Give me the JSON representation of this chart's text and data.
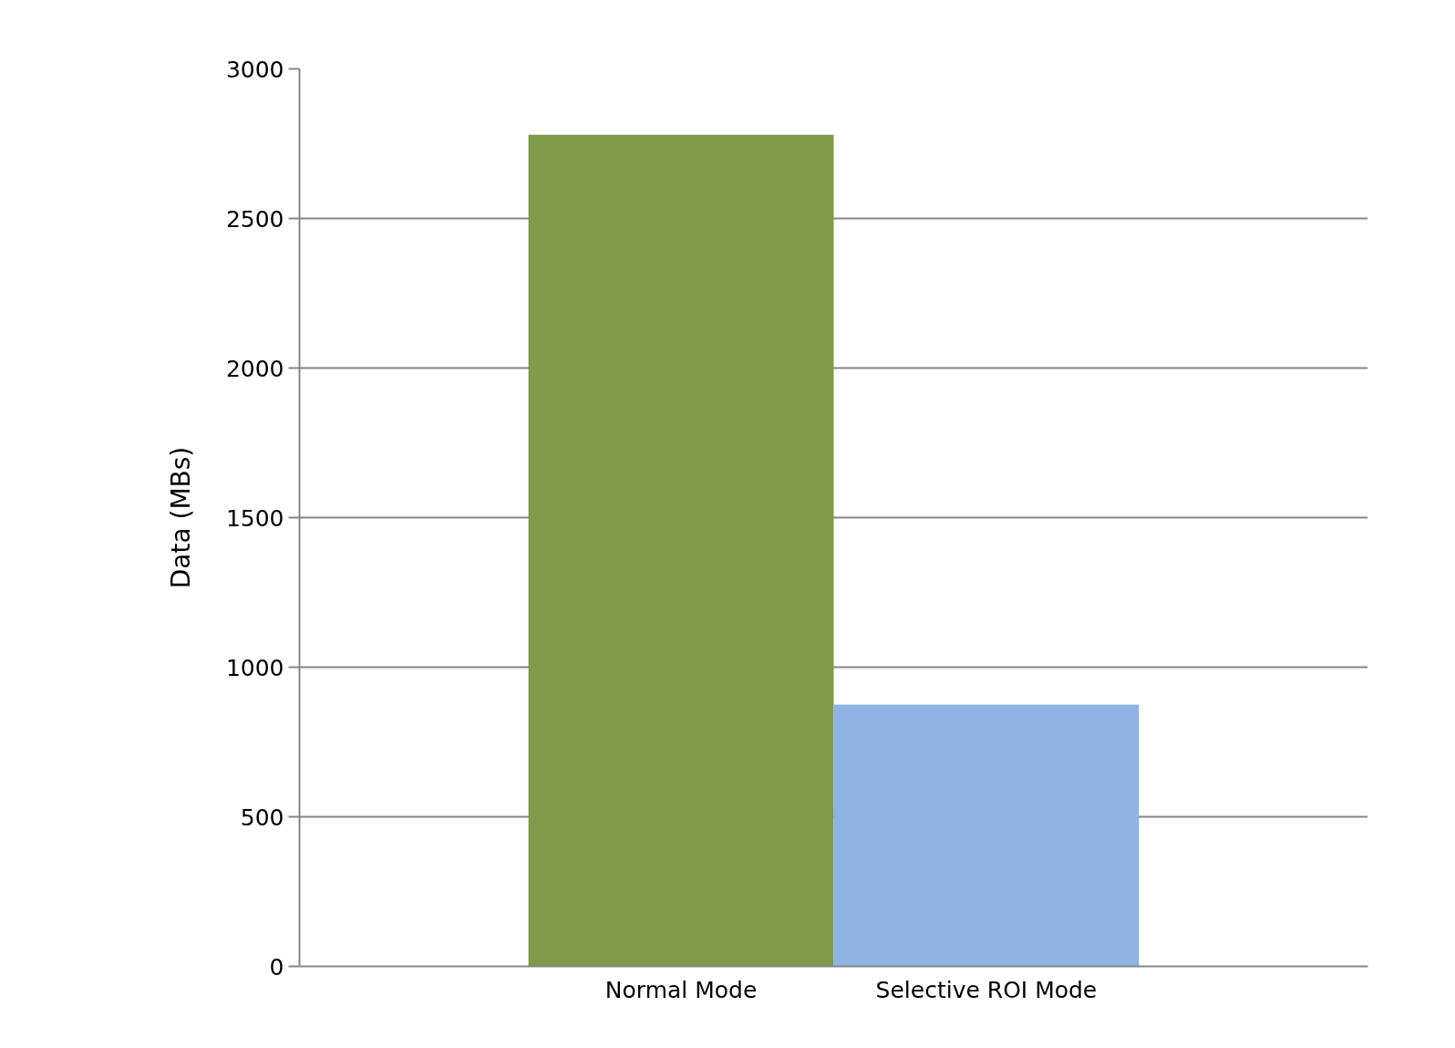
{
  "chart_data": {
    "type": "bar",
    "ylabel": "Data (MBs)",
    "categories": [
      "Normal Mode",
      "Selective ROI Mode"
    ],
    "values": [
      2780,
      875
    ],
    "colors": [
      "#7f9a48",
      "#8eb4e3"
    ],
    "ylim": [
      0,
      3000
    ],
    "yticks": [
      0,
      500,
      1000,
      1500,
      2000,
      2500,
      3000
    ],
    "grid": "y"
  }
}
